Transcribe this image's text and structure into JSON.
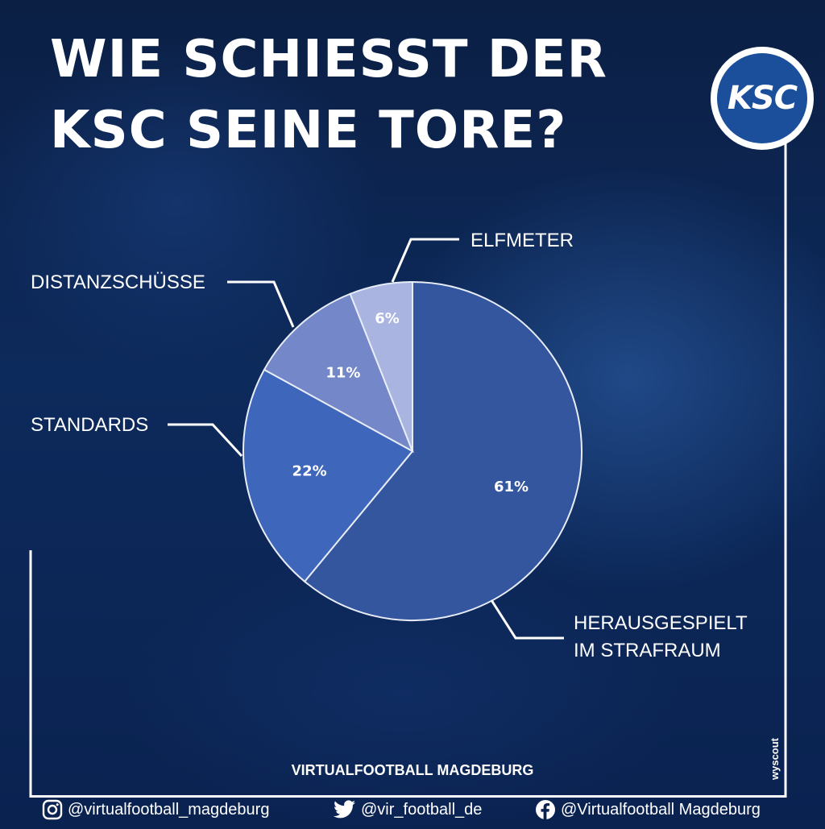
{
  "title": {
    "line1": "WIE SCHIESST DER",
    "line2": "KSC SEINE TORE?"
  },
  "logo": {
    "text": "KSC"
  },
  "chart_data": {
    "type": "pie",
    "slices": [
      {
        "label": "HERAUSGESPIELT IM STRAFRAUM",
        "label_lines": [
          "HERAUSGESPIELT",
          "IM STRAFRAUM"
        ],
        "value": 61,
        "display": "61%",
        "color": "#34569e"
      },
      {
        "label": "STANDARDS",
        "label_lines": [
          "STANDARDS"
        ],
        "value": 22,
        "display": "22%",
        "color": "#3e66bb"
      },
      {
        "label": "DISTANZSCHÜSSE",
        "label_lines": [
          "DISTANZSCHÜSSE"
        ],
        "value": 11,
        "display": "11%",
        "color": "#7487c8"
      },
      {
        "label": "ELFMETER",
        "label_lines": [
          "ELFMETER"
        ],
        "value": 6,
        "display": "6%",
        "color": "#a9b5e0"
      }
    ],
    "start": "12 o'clock",
    "direction": "clockwise"
  },
  "credit": "VIRTUALFOOTBALL MAGDEBURG",
  "source": "wyscout",
  "socials": [
    {
      "icon": "instagram-icon",
      "handle": "@virtualfootball_magdeburg"
    },
    {
      "icon": "twitter-icon",
      "handle": "@vir_football_de"
    },
    {
      "icon": "facebook-icon",
      "handle": "@Virtualfootball Magdeburg"
    }
  ]
}
